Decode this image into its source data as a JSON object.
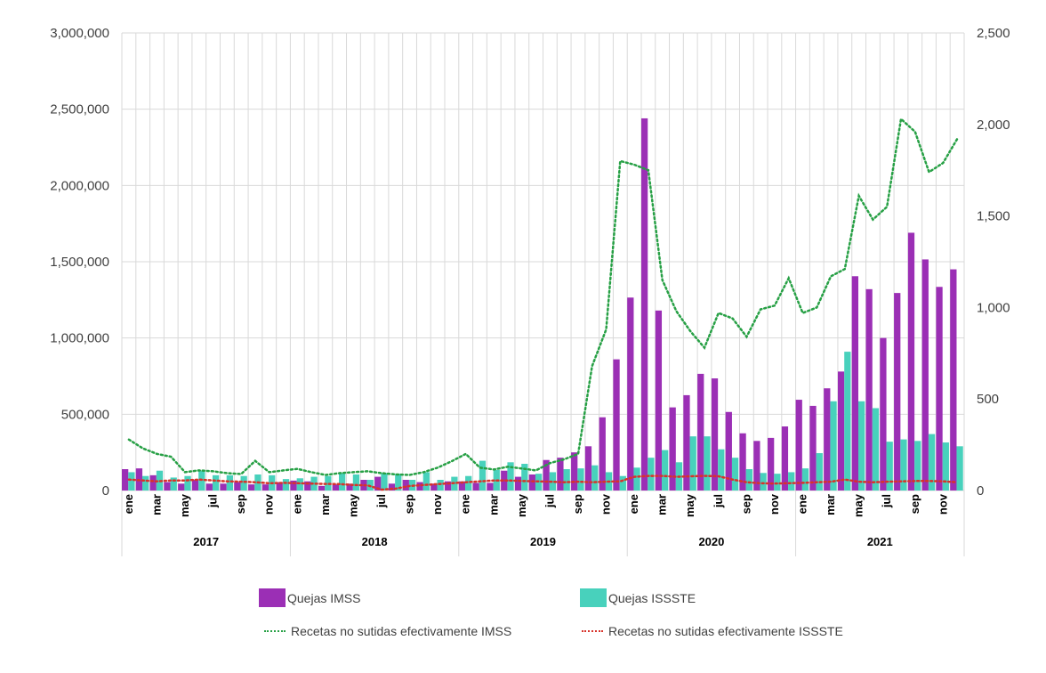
{
  "chart_data": {
    "type": "bar",
    "title": "",
    "xlabel": "",
    "ylabel": "",
    "ylim": [
      0,
      3000000
    ],
    "y2lim": [
      0,
      2500
    ],
    "y_ticks": [
      "0",
      "500,000",
      "1,000,000",
      "1,500,000",
      "2,000,000",
      "2,500,000",
      "3,000,000"
    ],
    "y2_ticks": [
      "0",
      "500",
      "1,000",
      "1,500",
      "2,000",
      "2,500"
    ],
    "grid": true,
    "legend_position": "bottom",
    "years": [
      "2017",
      "2018",
      "2019",
      "2020",
      "2021"
    ],
    "month_labels": [
      "ene",
      "mar",
      "may",
      "jul",
      "sep",
      "nov"
    ],
    "categories": [
      "ene 2017",
      "feb 2017",
      "mar 2017",
      "abr 2017",
      "may 2017",
      "jun 2017",
      "jul 2017",
      "ago 2017",
      "sep 2017",
      "oct 2017",
      "nov 2017",
      "dic 2017",
      "ene 2018",
      "feb 2018",
      "mar 2018",
      "abr 2018",
      "may 2018",
      "jun 2018",
      "jul 2018",
      "ago 2018",
      "sep 2018",
      "oct 2018",
      "nov 2018",
      "dic 2018",
      "ene 2019",
      "feb 2019",
      "mar 2019",
      "abr 2019",
      "may 2019",
      "jun 2019",
      "jul 2019",
      "ago 2019",
      "sep 2019",
      "oct 2019",
      "nov 2019",
      "dic 2019",
      "ene 2020",
      "feb 2020",
      "mar 2020",
      "abr 2020",
      "may 2020",
      "jun 2020",
      "jul 2020",
      "ago 2020",
      "sep 2020",
      "oct 2020",
      "nov 2020",
      "dic 2020",
      "ene 2021",
      "feb 2021",
      "mar 2021",
      "abr 2021",
      "may 2021",
      "jun 2021",
      "jul 2021",
      "ago 2021",
      "sep 2021",
      "oct 2021",
      "nov 2021",
      "dic 2021"
    ],
    "series": [
      {
        "name": "Quejas IMSS",
        "kind": "bar",
        "axis": "left",
        "color": "#9b2fb5",
        "values": [
          140000,
          145000,
          100000,
          55000,
          45000,
          70000,
          45000,
          45000,
          55000,
          40000,
          40000,
          55000,
          65000,
          60000,
          30000,
          40000,
          45000,
          70000,
          90000,
          45000,
          70000,
          55000,
          45000,
          60000,
          60000,
          50000,
          50000,
          130000,
          90000,
          105000,
          200000,
          215000,
          250000,
          290000,
          480000,
          860000,
          1265000,
          2440000,
          1180000,
          545000,
          625000,
          765000,
          735000,
          515000,
          375000,
          325000,
          345000,
          420000,
          595000,
          555000,
          670000,
          780000,
          1405000,
          1320000,
          1000000,
          1295000,
          1690000,
          1515000,
          1335000,
          1450000
        ]
      },
      {
        "name": "Quejas ISSSTE",
        "kind": "bar",
        "axis": "left",
        "color": "#48d1bc",
        "values": [
          120000,
          95000,
          130000,
          85000,
          95000,
          130000,
          100000,
          100000,
          95000,
          105000,
          100000,
          75000,
          80000,
          90000,
          95000,
          115000,
          105000,
          70000,
          115000,
          110000,
          70000,
          120000,
          70000,
          90000,
          95000,
          195000,
          135000,
          185000,
          175000,
          110000,
          120000,
          140000,
          145000,
          165000,
          120000,
          95000,
          150000,
          215000,
          265000,
          185000,
          355000,
          355000,
          270000,
          215000,
          140000,
          115000,
          110000,
          120000,
          145000,
          245000,
          585000,
          910000,
          585000,
          540000,
          320000,
          335000,
          325000,
          370000,
          315000,
          290000
        ]
      },
      {
        "name": "Recetas no sutidas efectivamente IMSS",
        "kind": "line",
        "axis": "right",
        "color": "#27a045",
        "values": [
          278,
          230,
          200,
          185,
          100,
          110,
          105,
          95,
          90,
          162,
          100,
          110,
          118,
          100,
          85,
          95,
          100,
          105,
          95,
          88,
          85,
          100,
          125,
          160,
          200,
          125,
          115,
          130,
          120,
          110,
          150,
          170,
          200,
          680,
          880,
          1800,
          1780,
          1750,
          1150,
          980,
          870,
          780,
          970,
          940,
          840,
          990,
          1010,
          1160,
          970,
          1000,
          1170,
          1210,
          1610,
          1480,
          1550,
          2030,
          1960,
          1740,
          1790,
          1920
        ]
      },
      {
        "name": "Recetas no sutidas efectivamente ISSSTE",
        "kind": "line",
        "axis": "right",
        "color": "#d8322a",
        "values": [
          60,
          55,
          50,
          55,
          55,
          60,
          55,
          50,
          48,
          45,
          40,
          42,
          40,
          38,
          36,
          35,
          30,
          28,
          5,
          10,
          25,
          30,
          35,
          40,
          45,
          50,
          55,
          55,
          52,
          50,
          48,
          45,
          48,
          45,
          48,
          50,
          75,
          80,
          80,
          75,
          78,
          80,
          78,
          60,
          45,
          40,
          38,
          40,
          42,
          45,
          48,
          60,
          48,
          45,
          48,
          50,
          52,
          52,
          50,
          45
        ]
      }
    ]
  }
}
